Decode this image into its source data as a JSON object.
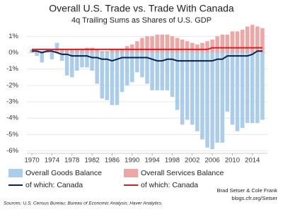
{
  "chart_data": {
    "type": "bar",
    "title": "Overall U.S. Trade vs. Trade With Canada",
    "subtitle": "4q Trailing Sums as Shares of U.S. GDP",
    "x": [
      1970,
      1971,
      1972,
      1973,
      1974,
      1975,
      1976,
      1977,
      1978,
      1979,
      1980,
      1981,
      1982,
      1983,
      1984,
      1985,
      1986,
      1987,
      1988,
      1989,
      1990,
      1991,
      1992,
      1993,
      1994,
      1995,
      1996,
      1997,
      1998,
      1999,
      2000,
      2001,
      2002,
      2003,
      2004,
      2005,
      2006,
      2007,
      2008,
      2009,
      2010,
      2011,
      2012,
      2013,
      2014,
      2015,
      2016
    ],
    "series": [
      {
        "name": "Overall Goods Balance",
        "type": "bar",
        "color": "#abcdea",
        "values": [
          0.2,
          -0.2,
          -0.6,
          0.1,
          -0.4,
          0.6,
          -0.5,
          -1.4,
          -1.5,
          -1.1,
          -0.9,
          -0.9,
          -1.1,
          -1.9,
          -2.8,
          -2.9,
          -3.2,
          -3.2,
          -2.4,
          -2.0,
          -1.8,
          -1.2,
          -1.5,
          -1.9,
          -2.3,
          -2.3,
          -2.3,
          -2.3,
          -2.7,
          -3.5,
          -4.4,
          -4.1,
          -4.4,
          -4.8,
          -5.3,
          -5.8,
          -5.9,
          -5.5,
          -5.5,
          -3.6,
          -4.4,
          -4.8,
          -4.6,
          -4.3,
          -4.3,
          -4.3,
          -4.1
        ]
      },
      {
        "name": "Overall Services Balance",
        "type": "bar",
        "color": "#eca7a7",
        "values": [
          0.1,
          0.1,
          0.1,
          0.1,
          0.1,
          0.2,
          0.2,
          0.2,
          0.2,
          0.2,
          0.2,
          0.3,
          0.3,
          0.2,
          0.1,
          0.1,
          0.2,
          0.2,
          0.2,
          0.4,
          0.5,
          0.7,
          0.9,
          1.0,
          1.0,
          1.1,
          1.1,
          1.1,
          1.0,
          0.9,
          0.8,
          0.7,
          0.6,
          0.5,
          0.6,
          0.7,
          0.8,
          1.0,
          1.1,
          1.1,
          1.3,
          1.3,
          1.4,
          1.6,
          1.7,
          1.6,
          1.5
        ]
      },
      {
        "name": "of which: Canada",
        "type": "line",
        "color": "#0d1f4f",
        "values": [
          0.1,
          0.1,
          0.0,
          0.1,
          0.1,
          0.0,
          -0.1,
          -0.1,
          -0.2,
          -0.2,
          -0.2,
          -0.2,
          -0.3,
          -0.3,
          -0.4,
          -0.4,
          -0.5,
          -0.4,
          -0.3,
          -0.3,
          -0.3,
          -0.3,
          -0.3,
          -0.3,
          -0.4,
          -0.5,
          -0.5,
          -0.4,
          -0.4,
          -0.5,
          -0.5,
          -0.5,
          -0.5,
          -0.5,
          -0.5,
          -0.5,
          -0.5,
          -0.4,
          -0.4,
          -0.2,
          -0.2,
          -0.2,
          -0.2,
          -0.2,
          -0.1,
          0.1,
          0.1
        ]
      },
      {
        "name": "of which: Canada",
        "type": "line",
        "color": "#cc2229",
        "values": [
          0.2,
          0.2,
          0.2,
          0.2,
          0.2,
          0.2,
          0.2,
          0.2,
          0.2,
          0.2,
          0.2,
          0.2,
          0.2,
          0.2,
          0.2,
          0.2,
          0.2,
          0.2,
          0.2,
          0.2,
          0.2,
          0.2,
          0.2,
          0.2,
          0.2,
          0.2,
          0.2,
          0.2,
          0.2,
          0.2,
          0.2,
          0.2,
          0.2,
          0.2,
          0.2,
          0.2,
          0.3,
          0.3,
          0.3,
          0.3,
          0.3,
          0.3,
          0.3,
          0.3,
          0.3,
          0.3,
          0.3
        ]
      }
    ],
    "xlim": [
      1969,
      2017
    ],
    "xticks": [
      1970,
      1974,
      1978,
      1982,
      1986,
      1990,
      1994,
      1998,
      2002,
      2006,
      2010,
      2014
    ],
    "ylim": [
      -6.15,
      1.62
    ],
    "yticks": [
      {
        "value": 1,
        "label": "1%"
      },
      {
        "value": 0,
        "label": "0%"
      },
      {
        "value": -1,
        "label": "-1%"
      },
      {
        "value": -2,
        "label": "-2%"
      },
      {
        "value": -3,
        "label": "-3%"
      },
      {
        "value": -4,
        "label": "-4%"
      },
      {
        "value": -5,
        "label": "-5%"
      },
      {
        "value": -6,
        "label": "-6%"
      }
    ],
    "grid": true,
    "legend": "bottom",
    "annotations": [
      "Brad Setser & Cole Frank",
      "blogs.cfr.org/Setser"
    ],
    "source": "Sources: U.S. Census Bureau; Bureau of Economic Analysis; Haver Analytics."
  }
}
